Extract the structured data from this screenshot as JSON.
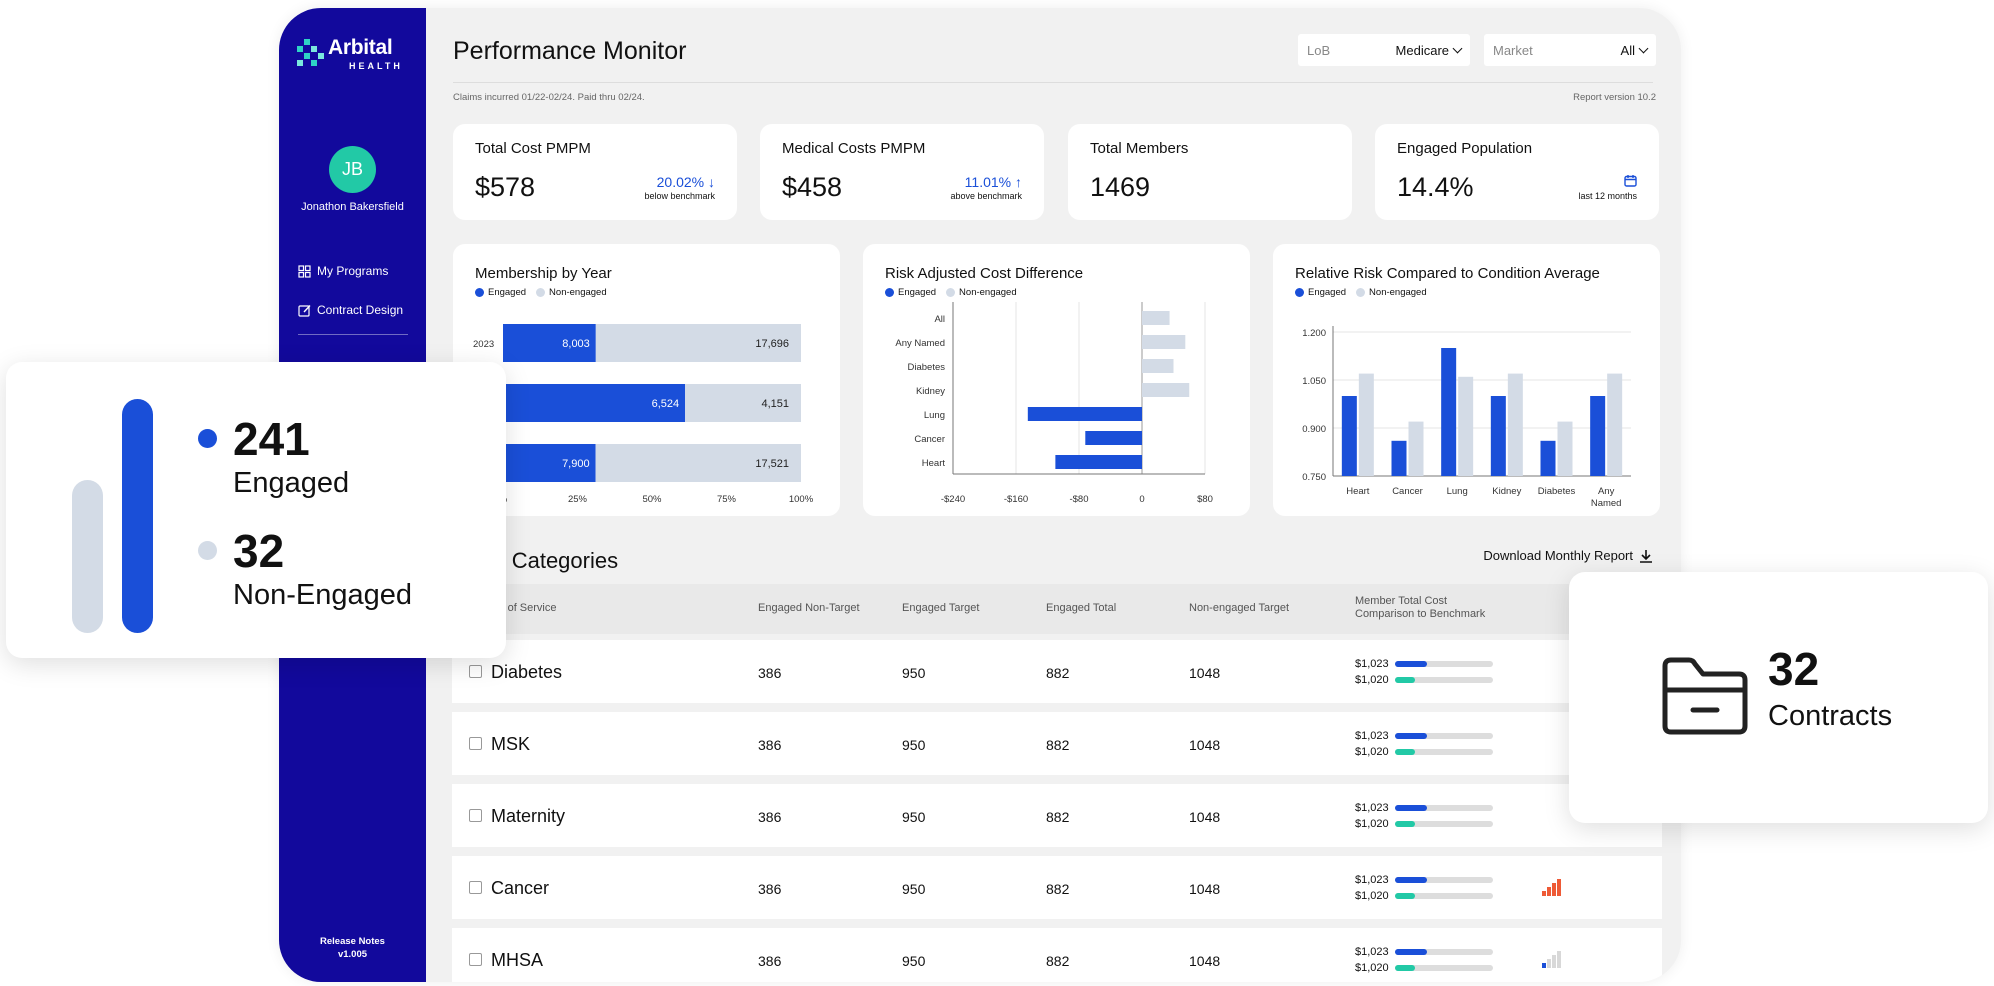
{
  "brand": {
    "name": "Arbital",
    "sub": "HEALTH",
    "teal": "#2fd3c6"
  },
  "user": {
    "initials": "JB",
    "name": "Jonathon Bakersfield"
  },
  "nav": [
    {
      "label": "My Programs",
      "icon": "grid-icon"
    },
    {
      "label": "Contract Design",
      "icon": "edit-icon"
    }
  ],
  "release": {
    "label": "Release Notes",
    "version": "v1.005"
  },
  "header": {
    "title": "Performance Monitor",
    "claims_note": "Claims incurred 01/22-02/24. Paid thru 02/24.",
    "report_version": "Report version 10.2"
  },
  "filters": {
    "lob": {
      "placeholder": "LoB",
      "value": "Medicare"
    },
    "market": {
      "placeholder": "Market",
      "value": "All"
    }
  },
  "kpis": [
    {
      "title": "Total Cost PMPM",
      "value": "$578",
      "pct": "20.02%",
      "arrow": "↓",
      "sub": "below benchmark"
    },
    {
      "title": "Medical Costs PMPM",
      "value": "$458",
      "pct": "11.01%",
      "arrow": "↑",
      "sub": "above benchmark"
    },
    {
      "title": "Total Members",
      "value": "1469"
    },
    {
      "title": "Engaged Population",
      "value": "14.4%",
      "sub": "last 12 months",
      "icon": "calendar-icon"
    }
  ],
  "legend": {
    "engaged": "Engaged",
    "non_engaged": "Non-engaged",
    "engaged_color": "#1a4fd8",
    "non_engaged_color": "#d3dbe6"
  },
  "chart_data": [
    {
      "type": "bar",
      "title": "Membership by Year",
      "orientation": "horizontal",
      "stacked": true,
      "categories": [
        "2023",
        "",
        ""
      ],
      "series": [
        {
          "name": "Engaged",
          "values": [
            8003,
            6524,
            7900
          ]
        },
        {
          "name": "Non-engaged",
          "values": [
            17696,
            4151,
            17521
          ]
        }
      ],
      "xticks": [
        "%",
        "25%",
        "50%",
        "75%",
        "100%"
      ]
    },
    {
      "type": "bar",
      "title": "Risk Adjusted Cost Difference",
      "orientation": "horizontal",
      "categories": [
        "All",
        "Any Named",
        "Diabetes",
        "Kidney",
        "Lung",
        "Cancer",
        "Heart"
      ],
      "series": [
        {
          "name": "Engaged",
          "values": [
            0,
            0,
            0,
            0,
            -145,
            -72,
            -110
          ]
        },
        {
          "name": "Non-engaged",
          "values": [
            35,
            55,
            40,
            60,
            0,
            0,
            0
          ]
        }
      ],
      "xticks": [
        "-$240",
        "-$160",
        "-$80",
        "0",
        "$80"
      ],
      "xlim": [
        -240,
        80
      ]
    },
    {
      "type": "bar",
      "title": "Relative Risk Compared to Condition Average",
      "categories": [
        "Heart",
        "Cancer",
        "Lung",
        "Kidney",
        "Diabetes",
        "Any Named"
      ],
      "series": [
        {
          "name": "Engaged",
          "values": [
            1.0,
            0.86,
            1.15,
            1.0,
            0.86,
            1.0
          ]
        },
        {
          "name": "Non-engaged",
          "values": [
            1.07,
            0.92,
            1.06,
            1.07,
            0.92,
            1.07
          ]
        }
      ],
      "yticks": [
        "1.200",
        "1.050",
        "0.900",
        "0.750"
      ],
      "ylim": [
        0.75,
        1.2
      ]
    }
  ],
  "table": {
    "section_title": "dition Categories",
    "download_label": "Download Monthly Report",
    "headers": [
      "e & Site of Service",
      "Engaged Non-Target",
      "Engaged Target",
      "Engaged Total",
      "Non-engaged Target",
      "Member Total Cost",
      "Comparison to Benchmark"
    ],
    "rows": [
      {
        "name": "Diabetes",
        "c1": "386",
        "c2": "950",
        "c3": "882",
        "c4": "1048",
        "cost1": "$1,023",
        "cost2": "$1,020",
        "signal": 0
      },
      {
        "name": "MSK",
        "c1": "386",
        "c2": "950",
        "c3": "882",
        "c4": "1048",
        "cost1": "$1,023",
        "cost2": "$1,020",
        "signal": 0
      },
      {
        "name": "Maternity",
        "c1": "386",
        "c2": "950",
        "c3": "882",
        "c4": "1048",
        "cost1": "$1,023",
        "cost2": "$1,020",
        "signal": 0
      },
      {
        "name": "Cancer",
        "c1": "386",
        "c2": "950",
        "c3": "882",
        "c4": "1048",
        "cost1": "$1,023",
        "cost2": "$1,020",
        "signal": 4
      },
      {
        "name": "MHSA",
        "c1": "386",
        "c2": "950",
        "c3": "882",
        "c4": "1048",
        "cost1": "$1,023",
        "cost2": "$1,020",
        "signal": 1
      }
    ]
  },
  "overlay_engaged": {
    "engaged_count": "241",
    "engaged_label": "Engaged",
    "non_engaged_count": "32",
    "non_engaged_label": "Non-Engaged"
  },
  "overlay_contracts": {
    "count": "32",
    "label": "Contracts",
    "icon": "folder-icon"
  }
}
